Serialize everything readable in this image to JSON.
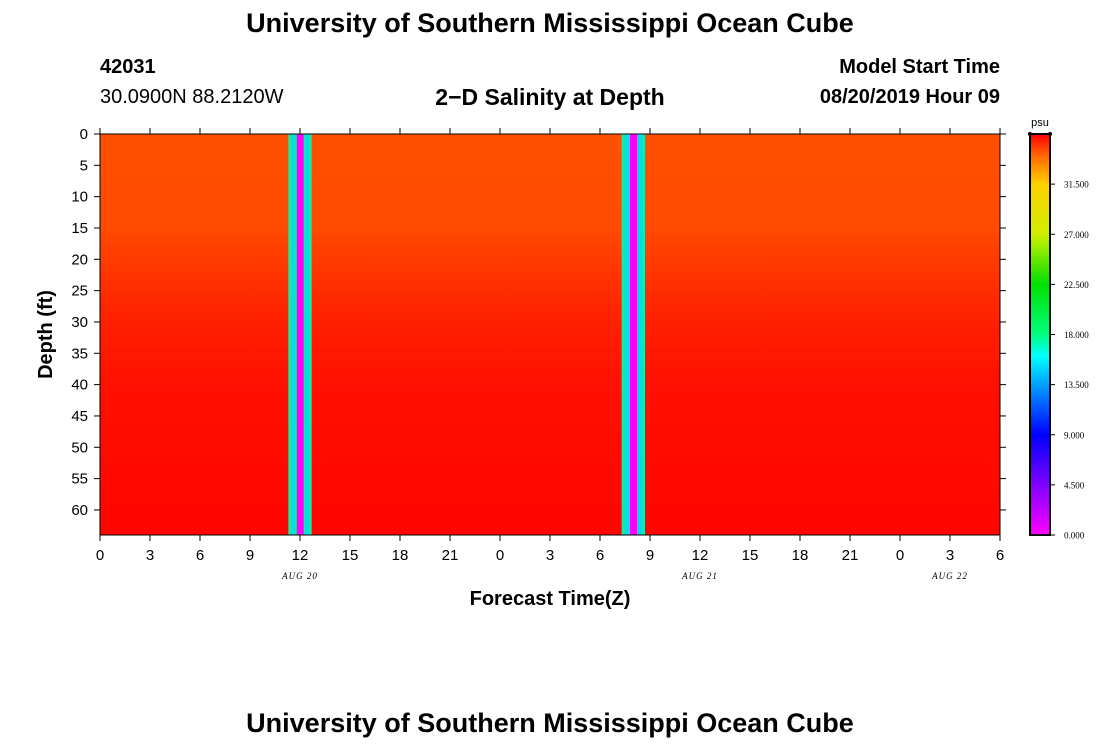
{
  "header": {
    "title": "University of Southern Mississippi Ocean Cube",
    "station_id": "42031",
    "station_coords": "30.0900N 88.2120W",
    "plot_title": "2−D Salinity at Depth",
    "start_label": "Model Start Time",
    "start_value": "08/20/2019 Hour 09"
  },
  "footer": {
    "title": "University of Southern Mississippi Ocean Cube"
  },
  "chart_data": {
    "type": "heatmap",
    "title": "2−D Salinity at Depth",
    "xlabel": "Forecast Time(Z)",
    "ylabel": "Depth (ft)",
    "x_range_hours": [
      0,
      54
    ],
    "x_tick_labels": [
      "0",
      "3",
      "6",
      "9",
      "12",
      "15",
      "18",
      "21",
      "0",
      "3",
      "6",
      "9",
      "12",
      "15",
      "18",
      "21",
      "0",
      "3",
      "6"
    ],
    "date_labels": [
      {
        "label": "AUG 20",
        "hour": 12
      },
      {
        "label": "AUG 21",
        "hour": 36
      },
      {
        "label": "AUG 22",
        "hour": 51
      }
    ],
    "ylim": [
      0,
      64
    ],
    "y_ticks": [
      0,
      5,
      10,
      15,
      20,
      25,
      30,
      35,
      40,
      45,
      50,
      55,
      60
    ],
    "salinity_profile": [
      {
        "depth_ft": 0,
        "psu": 34.5
      },
      {
        "depth_ft": 15,
        "psu": 34.6
      },
      {
        "depth_ft": 22,
        "psu": 35.0
      },
      {
        "depth_ft": 30,
        "psu": 35.4
      },
      {
        "depth_ft": 40,
        "psu": 35.7
      },
      {
        "depth_ft": 64,
        "psu": 35.9
      }
    ],
    "missing_data_hours": [
      {
        "start": 11.3,
        "end": 12.7
      },
      {
        "start": 31.3,
        "end": 32.7
      }
    ],
    "colorbar": {
      "unit": "psu",
      "range": [
        0,
        36
      ],
      "tick_values": [
        0,
        4.5,
        9,
        13.5,
        18,
        22.5,
        27,
        31.5
      ],
      "tick_labels": [
        "0.000",
        "4.500",
        "9.000",
        "13.500",
        "18.000",
        "22.500",
        "27.000",
        "31.500"
      ],
      "colors": [
        {
          "v": 0,
          "c": "#ff00ff"
        },
        {
          "v": 4.5,
          "c": "#8000ff"
        },
        {
          "v": 9,
          "c": "#0000ff"
        },
        {
          "v": 13.5,
          "c": "#00a0ff"
        },
        {
          "v": 16,
          "c": "#00ffff"
        },
        {
          "v": 18,
          "c": "#00ff80"
        },
        {
          "v": 22.5,
          "c": "#00e000"
        },
        {
          "v": 27,
          "c": "#d0f000"
        },
        {
          "v": 31.5,
          "c": "#ffd000"
        },
        {
          "v": 34,
          "c": "#ff6a00"
        },
        {
          "v": 36,
          "c": "#ff0000"
        }
      ]
    }
  }
}
